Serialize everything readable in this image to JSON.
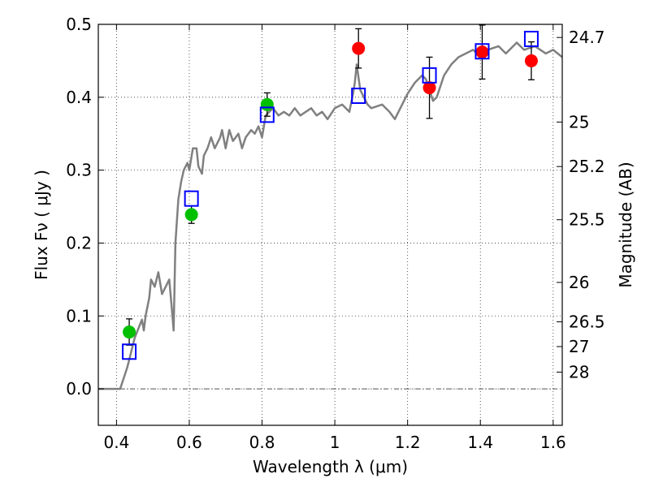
{
  "chart_data": {
    "type": "scatter",
    "xlabel": "Wavelength  λ (μm)",
    "ylabel": "Flux  Fν  ( μJy )",
    "ylabel_right": "Magnitude (AB)",
    "xlim": [
      0.35,
      1.625
    ],
    "ylim": [
      -0.05,
      0.5
    ],
    "grid": true,
    "x_ticks": [
      0.4,
      0.6,
      0.8,
      1.0,
      1.2,
      1.4,
      1.6
    ],
    "x_tick_labels": [
      "0.4",
      "0.6",
      "0.8",
      "1",
      "1.2",
      "1.4",
      "1.6"
    ],
    "y_ticks": [
      0.0,
      0.1,
      0.2,
      0.3,
      0.4,
      0.5
    ],
    "y_tick_labels": [
      "0.0",
      "0.1",
      "0.2",
      "0.3",
      "0.4",
      "0.5"
    ],
    "right_ticks": [
      {
        "label": "24.7",
        "flux": 0.482
      },
      {
        "label": "25",
        "flux": 0.366
      },
      {
        "label": "25.2",
        "flux": 0.305
      },
      {
        "label": "25.5",
        "flux": 0.232
      },
      {
        "label": "26",
        "flux": 0.146
      },
      {
        "label": "26.5",
        "flux": 0.092
      },
      {
        "label": "27",
        "flux": 0.058
      },
      {
        "label": "28",
        "flux": 0.023
      }
    ],
    "series": [
      {
        "color": "#808080",
        "style": "line",
        "points": [
          [
            0.35,
            0.0
          ],
          [
            0.41,
            0.0
          ],
          [
            0.43,
            0.03
          ],
          [
            0.45,
            0.07
          ],
          [
            0.47,
            0.095
          ],
          [
            0.475,
            0.08
          ],
          [
            0.48,
            0.1
          ],
          [
            0.49,
            0.125
          ],
          [
            0.495,
            0.15
          ],
          [
            0.505,
            0.14
          ],
          [
            0.515,
            0.16
          ],
          [
            0.525,
            0.13
          ],
          [
            0.535,
            0.14
          ],
          [
            0.545,
            0.15
          ],
          [
            0.552,
            0.11
          ],
          [
            0.557,
            0.08
          ],
          [
            0.562,
            0.2
          ],
          [
            0.57,
            0.26
          ],
          [
            0.578,
            0.285
          ],
          [
            0.585,
            0.3
          ],
          [
            0.595,
            0.31
          ],
          [
            0.6,
            0.3
          ],
          [
            0.61,
            0.33
          ],
          [
            0.62,
            0.33
          ],
          [
            0.625,
            0.305
          ],
          [
            0.635,
            0.295
          ],
          [
            0.64,
            0.32
          ],
          [
            0.65,
            0.33
          ],
          [
            0.66,
            0.345
          ],
          [
            0.67,
            0.33
          ],
          [
            0.685,
            0.345
          ],
          [
            0.69,
            0.355
          ],
          [
            0.7,
            0.33
          ],
          [
            0.71,
            0.355
          ],
          [
            0.72,
            0.34
          ],
          [
            0.735,
            0.35
          ],
          [
            0.745,
            0.33
          ],
          [
            0.755,
            0.345
          ],
          [
            0.77,
            0.355
          ],
          [
            0.78,
            0.35
          ],
          [
            0.79,
            0.36
          ],
          [
            0.8,
            0.345
          ],
          [
            0.81,
            0.375
          ],
          [
            0.82,
            0.38
          ],
          [
            0.83,
            0.385
          ],
          [
            0.845,
            0.375
          ],
          [
            0.86,
            0.38
          ],
          [
            0.875,
            0.375
          ],
          [
            0.89,
            0.385
          ],
          [
            0.905,
            0.375
          ],
          [
            0.92,
            0.38
          ],
          [
            0.935,
            0.385
          ],
          [
            0.95,
            0.375
          ],
          [
            0.965,
            0.38
          ],
          [
            0.98,
            0.37
          ],
          [
            1.0,
            0.385
          ],
          [
            1.02,
            0.39
          ],
          [
            1.04,
            0.38
          ],
          [
            1.05,
            0.405
          ],
          [
            1.055,
            0.42
          ],
          [
            1.06,
            0.445
          ],
          [
            1.07,
            0.41
          ],
          [
            1.09,
            0.39
          ],
          [
            1.1,
            0.385
          ],
          [
            1.13,
            0.39
          ],
          [
            1.15,
            0.38
          ],
          [
            1.165,
            0.37
          ],
          [
            1.17,
            0.375
          ],
          [
            1.19,
            0.395
          ],
          [
            1.2,
            0.405
          ],
          [
            1.22,
            0.42
          ],
          [
            1.24,
            0.43
          ],
          [
            1.25,
            0.425
          ],
          [
            1.27,
            0.395
          ],
          [
            1.28,
            0.4
          ],
          [
            1.3,
            0.43
          ],
          [
            1.32,
            0.445
          ],
          [
            1.34,
            0.455
          ],
          [
            1.36,
            0.46
          ],
          [
            1.38,
            0.465
          ],
          [
            1.4,
            0.455
          ],
          [
            1.42,
            0.465
          ],
          [
            1.45,
            0.47
          ],
          [
            1.47,
            0.46
          ],
          [
            1.5,
            0.475
          ],
          [
            1.52,
            0.465
          ],
          [
            1.55,
            0.47
          ],
          [
            1.58,
            0.46
          ],
          [
            1.6,
            0.465
          ],
          [
            1.625,
            0.455
          ]
        ]
      },
      {
        "color": "#00c000",
        "style": "points",
        "points": [
          {
            "x": 0.435,
            "y": 0.078,
            "err": 0.018
          },
          {
            "x": 0.606,
            "y": 0.239,
            "err": 0.012
          },
          {
            "x": 0.814,
            "y": 0.39,
            "err": 0.016
          }
        ]
      },
      {
        "color": "#ff0000",
        "style": "points",
        "points": [
          {
            "x": 1.065,
            "y": 0.467,
            "err": 0.027
          },
          {
            "x": 1.26,
            "y": 0.413,
            "err": 0.042
          },
          {
            "x": 1.405,
            "y": 0.462,
            "err": 0.037
          },
          {
            "x": 1.54,
            "y": 0.45,
            "err": 0.026
          }
        ]
      },
      {
        "color": "#0000ff",
        "style": "open-squares",
        "points": [
          {
            "x": 0.435,
            "y": 0.051
          },
          {
            "x": 0.606,
            "y": 0.261
          },
          {
            "x": 0.814,
            "y": 0.376
          },
          {
            "x": 1.065,
            "y": 0.402
          },
          {
            "x": 1.26,
            "y": 0.43
          },
          {
            "x": 1.405,
            "y": 0.463
          },
          {
            "x": 1.54,
            "y": 0.48
          }
        ]
      }
    ]
  }
}
